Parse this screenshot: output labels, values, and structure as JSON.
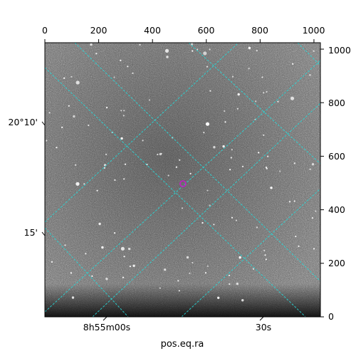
{
  "figure": {
    "x_pixel_ticks": [
      "0",
      "200",
      "400",
      "600",
      "800",
      "1000"
    ],
    "y_pixel_ticks": [
      "0",
      "200",
      "400",
      "600",
      "800",
      "1000"
    ],
    "ra_ticks": {
      "first": "8h55m00s",
      "second": "30s"
    },
    "dec_ticks": [
      "20°10'",
      "15'"
    ],
    "xlabel": "pos.eq.ra",
    "grid_color": "#27d8d8",
    "marker_color": "#c020c0",
    "marker_position_px": [
      513,
      497
    ]
  }
}
